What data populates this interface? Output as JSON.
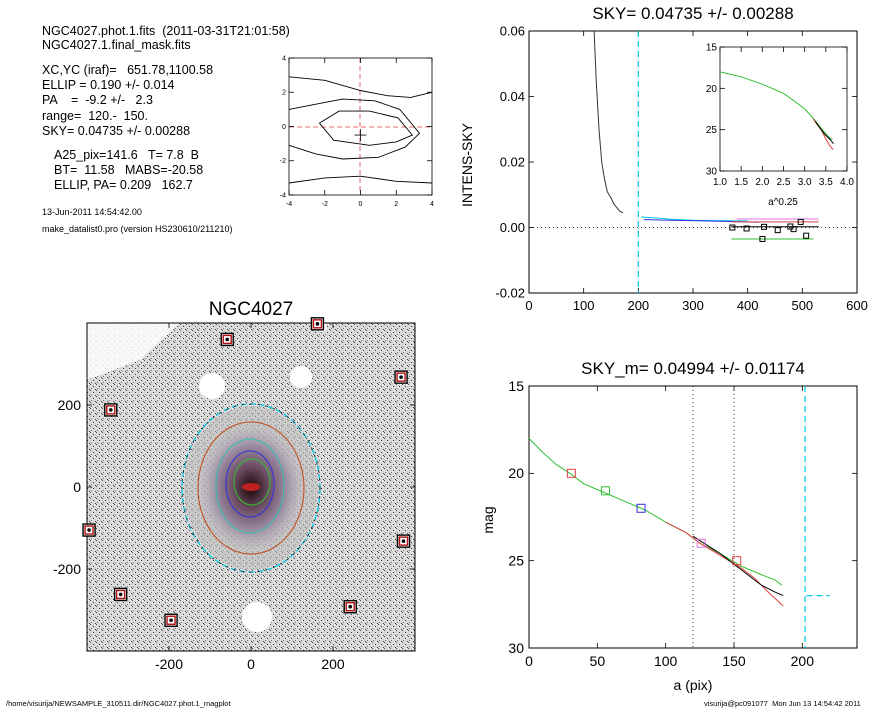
{
  "header": {
    "file": "NGC4027.phot.1.fits",
    "date": "(2011-03-31T21:01:58)",
    "mask": "NGC4027.1.final_mask.fits",
    "lines1": [
      "XC,YC (iraf)=   651.78,1100.58",
      "ELLIP = 0.190 +/- 0.014",
      "PA    =  -9.2 +/-   2.3",
      "range=  120.-  150.",
      "SKY= 0.04735 +/- 0.00288"
    ],
    "lines2": [
      "A25_pix=141.6   T= 7.8  B",
      "BT=  11.58   MABS=-20.58",
      "ELLIP, PA= 0.209   162.7"
    ],
    "timestamp": "13-Jun-2011 14:54:42.00",
    "program": "make_datalist0.pro (version HS230610/211210)"
  },
  "footer": {
    "path": "/home/visurija/NEWSAMPLE_310511.dir/NGC4027.phot.1_magplot",
    "user": "visurija@pc091077  Mon Jun 13 14:54:42 2011"
  },
  "chart_data": [
    {
      "id": "contour",
      "type": "line",
      "title": "",
      "x_ticks": [
        "-4",
        "-2",
        "0",
        "2",
        "4"
      ],
      "y_ticks": [
        "4",
        "2",
        "0",
        "-2",
        "-4"
      ],
      "xlim": [
        -4,
        4
      ],
      "ylim": [
        -4,
        4
      ],
      "contours": [
        [
          [
            -4,
            2.9
          ],
          [
            -2,
            2.7
          ],
          [
            0,
            2.1
          ],
          [
            1.5,
            1.8
          ],
          [
            2.8,
            1.7
          ],
          [
            4,
            2.0
          ]
        ],
        [
          [
            -4,
            1.0
          ],
          [
            -2.5,
            1.3
          ],
          [
            -1,
            1.6
          ],
          [
            0.8,
            1.5
          ],
          [
            2.2,
            1.0
          ],
          [
            3.3,
            -0.4
          ],
          [
            2.5,
            -1.2
          ],
          [
            1.0,
            -1.8
          ],
          [
            -1,
            -1.9
          ],
          [
            -2.5,
            -1.6
          ],
          [
            -4,
            -1.1
          ]
        ],
        [
          [
            -2.3,
            0.2
          ],
          [
            -1.2,
            0.9
          ],
          [
            0.5,
            0.9
          ],
          [
            2.1,
            0.5
          ],
          [
            2.9,
            -0.5
          ],
          [
            2.0,
            -0.9
          ],
          [
            0.5,
            -1.1
          ],
          [
            -1.5,
            -0.8
          ],
          [
            -2.3,
            0.2
          ]
        ],
        [
          [
            -4,
            -3.3
          ],
          [
            -2,
            -3.0
          ],
          [
            0,
            -2.9
          ],
          [
            2,
            -3.2
          ],
          [
            4,
            -3.3
          ]
        ]
      ],
      "center": [
        0,
        -0.5
      ]
    },
    {
      "id": "sky",
      "type": "line",
      "title": "SKY= 0.04735 +/- 0.00288",
      "xlabel": "",
      "ylabel": "INTENS-SKY",
      "xlim": [
        0,
        600
      ],
      "ylim": [
        -0.02,
        0.06
      ],
      "x_ticks": [
        "0",
        "100",
        "200",
        "300",
        "400",
        "500",
        "600"
      ],
      "y_ticks": [
        "0.06",
        "0.04",
        "0.02",
        "0.00",
        "-0.02"
      ],
      "profile": [
        [
          119,
          0.06
        ],
        [
          123,
          0.045
        ],
        [
          128,
          0.03
        ],
        [
          133,
          0.02
        ],
        [
          138,
          0.015
        ],
        [
          143,
          0.011
        ],
        [
          150,
          0.009
        ],
        [
          156,
          0.007
        ],
        [
          161,
          0.006
        ],
        [
          166,
          0.005
        ],
        [
          172,
          0.0045
        ]
      ],
      "marker_x": 200,
      "segments": [
        {
          "color": "#00c8e6",
          "points": [
            [
              205,
              0.0032
            ],
            [
              240,
              0.0028
            ],
            [
              260,
              0.0025
            ],
            [
              300,
              0.0022
            ],
            [
              340,
              0.0021
            ],
            [
              400,
              0.002
            ]
          ]
        },
        {
          "color": "#3030e0",
          "points": [
            [
              210,
              0.0024
            ],
            [
              260,
              0.0022
            ],
            [
              320,
              0.002
            ],
            [
              380,
              0.0018
            ],
            [
              420,
              0.0016
            ]
          ]
        },
        {
          "color": "#e070e0",
          "points": [
            [
              380,
              0.0026
            ],
            [
              530,
              0.0026
            ]
          ]
        },
        {
          "color": "#e04040",
          "points": [
            [
              370,
              0.0017
            ],
            [
              530,
              0.0017
            ]
          ]
        },
        {
          "color": "#000000",
          "points": [
            [
              370,
              0.0002
            ],
            [
              530,
              0.0002
            ]
          ]
        },
        {
          "color": "#30c030",
          "points": [
            [
              370,
              -0.0035
            ],
            [
              520,
              -0.0035
            ]
          ]
        }
      ],
      "squares": [
        [
          372,
          0.0
        ],
        [
          398,
          -0.0003
        ],
        [
          430,
          0.0002
        ],
        [
          455,
          -0.0008
        ],
        [
          478,
          0.0003
        ],
        [
          497,
          0.0017
        ],
        [
          507,
          -0.0025
        ],
        [
          427,
          -0.0035
        ],
        [
          484,
          -0.0005
        ]
      ]
    },
    {
      "id": "inset",
      "type": "line",
      "title": "",
      "xlabel": "a^0.25",
      "xlim": [
        1.0,
        4.0
      ],
      "ylim": [
        15,
        30
      ],
      "x_ticks": [
        "1.0",
        "1.5",
        "2.0",
        "2.5",
        "3.0",
        "3.5",
        "4.0"
      ],
      "y_ticks": [
        "15",
        "20",
        "25",
        "30"
      ],
      "series": [
        {
          "color": "#30c030",
          "points": [
            [
              1.0,
              18.0
            ],
            [
              1.5,
              18.6
            ],
            [
              2.0,
              19.5
            ],
            [
              2.5,
              20.6
            ],
            [
              2.8,
              21.7
            ],
            [
              3.0,
              22.5
            ],
            [
              3.2,
              23.6
            ],
            [
              3.4,
              24.9
            ],
            [
              3.55,
              25.8
            ],
            [
              3.65,
              26.2
            ]
          ]
        },
        {
          "color": "#e04040",
          "points": [
            [
              3.2,
              23.7
            ],
            [
              3.4,
              25.1
            ],
            [
              3.5,
              26.1
            ],
            [
              3.6,
              27.0
            ],
            [
              3.67,
              27.4
            ]
          ]
        },
        {
          "color": "#000000",
          "points": [
            [
              3.25,
              24.0
            ],
            [
              3.45,
              25.4
            ],
            [
              3.6,
              26.2
            ],
            [
              3.68,
              26.7
            ]
          ]
        }
      ]
    },
    {
      "id": "image",
      "type": "scatter",
      "title": "NGC4027",
      "xlim": [
        -400,
        400
      ],
      "ylim": [
        -400,
        400
      ],
      "x_ticks": [
        "-200",
        "0",
        "200"
      ],
      "y_ticks": [
        "200",
        "0",
        "-200"
      ],
      "stars": [
        [
          -58,
          360
        ],
        [
          162,
          398
        ],
        [
          -342,
          188
        ],
        [
          366,
          268
        ],
        [
          -395,
          -105
        ],
        [
          372,
          -132
        ],
        [
          -318,
          -262
        ],
        [
          -195,
          -325
        ],
        [
          242,
          -292
        ]
      ]
    },
    {
      "id": "mag",
      "type": "line",
      "title": "SKY_m=  0.04994 +/- 0.01174",
      "xlabel": "a (pix)",
      "ylabel": "mag",
      "xlim": [
        0,
        240
      ],
      "ylim": [
        15,
        30
      ],
      "x_ticks": [
        "0",
        "50",
        "100",
        "150",
        "200"
      ],
      "y_ticks": [
        "15",
        "20",
        "25",
        "30"
      ],
      "vlines": [
        120,
        150
      ],
      "cyan_v": 202,
      "cyan_h": {
        "y": 27.0,
        "x0": 203,
        "x1": 220
      },
      "series": [
        {
          "color": "#30c030",
          "points": [
            [
              0,
              18.0
            ],
            [
              10,
              18.8
            ],
            [
              20,
              19.5
            ],
            [
              30,
              20.0
            ],
            [
              40,
              20.6
            ],
            [
              55,
              21.1
            ],
            [
              70,
              21.6
            ],
            [
              85,
              22.1
            ],
            [
              100,
              22.8
            ],
            [
              115,
              23.4
            ],
            [
              125,
              24.0
            ],
            [
              140,
              24.6
            ],
            [
              155,
              25.3
            ],
            [
              170,
              25.8
            ],
            [
              180,
              26.1
            ],
            [
              185,
              26.4
            ]
          ]
        },
        {
          "color": "#e04040",
          "points": [
            [
              100,
              22.8
            ],
            [
              115,
              23.4
            ],
            [
              125,
              24.0
            ],
            [
              140,
              24.7
            ],
            [
              155,
              25.4
            ],
            [
              165,
              26.0
            ],
            [
              175,
              26.8
            ],
            [
              182,
              27.3
            ],
            [
              186,
              27.6
            ]
          ]
        },
        {
          "color": "#000000",
          "points": [
            [
              120,
              23.6
            ],
            [
              140,
              24.6
            ],
            [
              155,
              25.5
            ],
            [
              170,
              26.4
            ],
            [
              180,
              26.8
            ],
            [
              186,
              27.0
            ]
          ]
        }
      ],
      "squares": [
        {
          "x": 31,
          "y": 20.0,
          "color": "#e04040"
        },
        {
          "x": 56,
          "y": 21.0,
          "color": "#30c030"
        },
        {
          "x": 82,
          "y": 22.0,
          "color": "#3030e0"
        },
        {
          "x": 126,
          "y": 24.0,
          "color": "#e070e0"
        },
        {
          "x": 152,
          "y": 25.0,
          "color": "#e04040"
        }
      ]
    }
  ]
}
